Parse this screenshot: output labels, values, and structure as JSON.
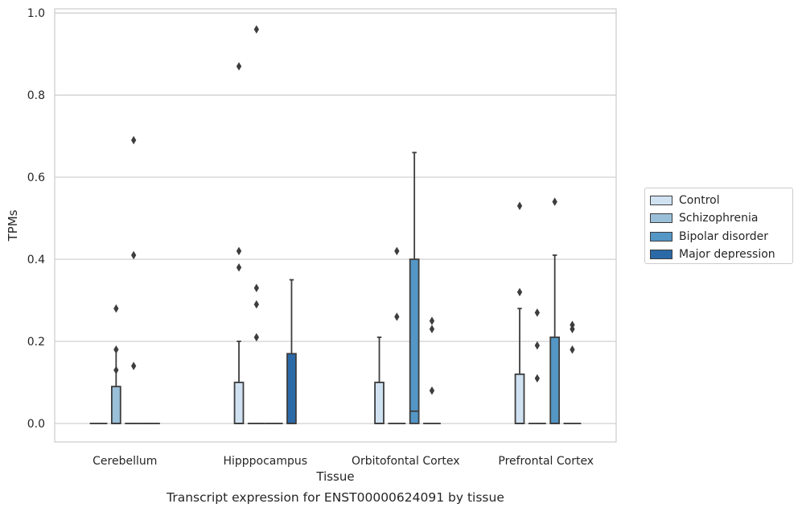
{
  "chart_data": {
    "type": "box",
    "title": "Transcript expression for ENST00000624091 by tissue",
    "xlabel": "Tissue",
    "ylabel": "TPMs",
    "ylim": [
      -0.045,
      1.01
    ],
    "yticks": [
      "0.0",
      "0.2",
      "0.4",
      "0.6",
      "0.8",
      "1.0"
    ],
    "grid": true,
    "legend_position": "right",
    "categories": [
      "Cerebellum",
      "Hipppocampus",
      "Orbitofontal Cortex",
      "Prefrontal Cortex"
    ],
    "series": [
      {
        "name": "Control",
        "color": "#d0e1f2",
        "boxes": [
          {
            "q1": 0,
            "median": 0,
            "q3": 0,
            "whisker_low": 0,
            "whisker_high": 0,
            "outliers": []
          },
          {
            "q1": 0,
            "median": 0,
            "q3": 0.1,
            "whisker_low": 0,
            "whisker_high": 0.2,
            "outliers": [
              0.42,
              0.38,
              0.87
            ]
          },
          {
            "q1": 0,
            "median": 0,
            "q3": 0.1,
            "whisker_low": 0,
            "whisker_high": 0.21,
            "outliers": []
          },
          {
            "q1": 0,
            "median": 0,
            "q3": 0.12,
            "whisker_low": 0,
            "whisker_high": 0.28,
            "outliers": [
              0.32,
              0.53
            ]
          }
        ]
      },
      {
        "name": "Schizophrenia",
        "color": "#9ac0d9",
        "boxes": [
          {
            "q1": 0,
            "median": 0,
            "q3": 0.09,
            "whisker_low": 0,
            "whisker_high": 0.18,
            "outliers": [
              0.28,
              0.18,
              0.13
            ]
          },
          {
            "q1": 0,
            "median": 0,
            "q3": 0,
            "whisker_low": 0,
            "whisker_high": 0,
            "outliers": [
              0.33,
              0.29,
              0.21,
              0.96
            ]
          },
          {
            "q1": 0,
            "median": 0,
            "q3": 0,
            "whisker_low": 0,
            "whisker_high": 0,
            "outliers": [
              0.42,
              0.26
            ]
          },
          {
            "q1": 0,
            "median": 0,
            "q3": 0,
            "whisker_low": 0,
            "whisker_high": 0,
            "outliers": [
              0.27,
              0.19,
              0.11
            ]
          }
        ]
      },
      {
        "name": "Bipolar disorder",
        "color": "#5496c6",
        "boxes": [
          {
            "q1": 0,
            "median": 0,
            "q3": 0,
            "whisker_low": 0,
            "whisker_high": 0,
            "outliers": [
              0.69,
              0.41,
              0.14
            ]
          },
          {
            "q1": 0,
            "median": 0,
            "q3": 0,
            "whisker_low": 0,
            "whisker_high": 0,
            "outliers": []
          },
          {
            "q1": 0,
            "median": 0.03,
            "q3": 0.4,
            "whisker_low": 0,
            "whisker_high": 0.66,
            "outliers": []
          },
          {
            "q1": 0,
            "median": 0,
            "q3": 0.21,
            "whisker_low": 0,
            "whisker_high": 0.41,
            "outliers": [
              0.54
            ]
          }
        ]
      },
      {
        "name": "Major depression",
        "color": "#2b69a7",
        "boxes": [
          {
            "q1": 0,
            "median": 0,
            "q3": 0,
            "whisker_low": 0,
            "whisker_high": 0,
            "outliers": []
          },
          {
            "q1": 0,
            "median": 0,
            "q3": 0.17,
            "whisker_low": 0,
            "whisker_high": 0.35,
            "outliers": []
          },
          {
            "q1": 0,
            "median": 0,
            "q3": 0,
            "whisker_low": 0,
            "whisker_high": 0,
            "outliers": [
              0.25,
              0.23,
              0.08
            ]
          },
          {
            "q1": 0,
            "median": 0,
            "q3": 0,
            "whisker_low": 0,
            "whisker_high": 0,
            "outliers": [
              0.24,
              0.23,
              0.18
            ]
          }
        ]
      }
    ]
  }
}
